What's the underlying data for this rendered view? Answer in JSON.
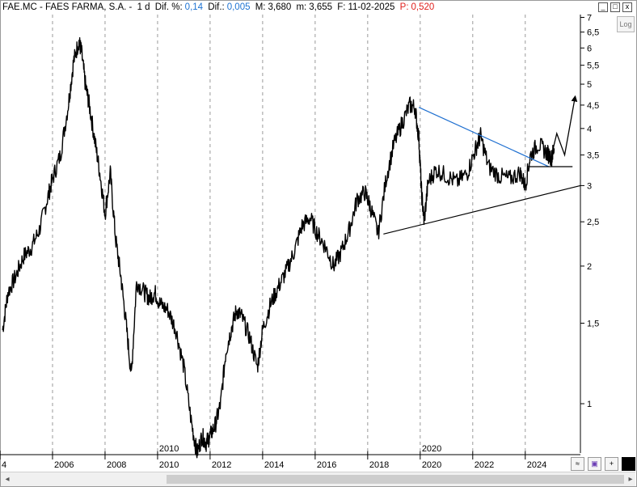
{
  "header": {
    "ticker": "FAE.MC - FAES FARMA, S.A. -",
    "period": "1 d",
    "dif_pct_label": "Dif. %:",
    "dif_pct_value": "0,14",
    "dif_label": "Dif.:",
    "dif_value": "0,005",
    "max_label": "M:",
    "max_value": "3,680",
    "min_label": "m:",
    "min_value": "3,655",
    "date_label": "F:",
    "date_value": "11-02-2025",
    "p_label": "P:",
    "p_value": "0,520"
  },
  "toolbar": {
    "log_label": "Log",
    "minimize_label": "_",
    "maximize_label": "□",
    "close_label": "x"
  },
  "colors": {
    "price": "#000000",
    "trend_upper": "#1e6fd0",
    "axis_text": "#000000",
    "header_value": "#1e73d2",
    "header_p": "#e0201c"
  },
  "chart_data": {
    "type": "line",
    "scale": "log",
    "ylim": [
      0.78,
      7.1
    ],
    "xlim": [
      2004.0,
      2026.1
    ],
    "y_ticks": [
      "7",
      "6,5",
      "6",
      "5,5",
      "5",
      "4,5",
      "4",
      "3,5",
      "3",
      "2,5",
      "2",
      "1,5",
      "1"
    ],
    "y_tick_values": [
      7,
      6.5,
      6,
      5.5,
      5,
      4.5,
      4,
      3.5,
      3,
      2.5,
      2,
      1.5,
      1
    ],
    "x_ticks": [
      "4",
      "2006",
      "2008",
      "2010",
      "2012",
      "2014",
      "2016",
      "2018",
      "2020",
      "2022",
      "2024"
    ],
    "x_tick_values": [
      2004.0,
      2006,
      2008,
      2010,
      2012,
      2014,
      2016,
      2018,
      2020,
      2022,
      2024
    ],
    "decade_markers": [
      {
        "label": "2010",
        "x": 2010
      },
      {
        "label": "2020",
        "x": 2020
      }
    ],
    "series": [
      {
        "x": [
          2004.1,
          2004.3,
          2004.6,
          2004.9,
          2005.2,
          2005.5,
          2005.8,
          2006.0,
          2006.3,
          2006.6,
          2006.8,
          2007.0,
          2007.1,
          2007.25,
          2007.4,
          2007.6,
          2007.8,
          2008.0,
          2008.2,
          2008.4,
          2008.6,
          2008.8,
          2009.0,
          2009.2,
          2009.5,
          2009.7,
          2009.9,
          2010.1,
          2010.4,
          2010.7,
          2011.0,
          2011.3,
          2011.5,
          2011.7,
          2011.85,
          2012.0,
          2012.2,
          2012.4,
          2012.6,
          2012.8,
          2013.0,
          2013.2,
          2013.5,
          2013.8,
          2014.0,
          2014.3,
          2014.6,
          2014.9,
          2015.2,
          2015.5,
          2015.8,
          2016.1,
          2016.4,
          2016.7,
          2017.0,
          2017.3,
          2017.6,
          2017.9,
          2018.1,
          2018.4,
          2018.7,
          2019.0,
          2019.3,
          2019.6,
          2019.8,
          2019.95,
          2020.05,
          2020.15,
          2020.3,
          2020.6,
          2021.0,
          2021.4,
          2021.8,
          2022.1,
          2022.3,
          2022.6,
          2023.0,
          2023.4,
          2023.8,
          2024.0,
          2024.2,
          2024.5,
          2024.8,
          2025.0,
          2025.1
        ],
        "y": [
          1.45,
          1.75,
          1.9,
          2.1,
          2.2,
          2.4,
          2.8,
          3.1,
          3.5,
          4.5,
          5.6,
          6.2,
          5.9,
          5.0,
          4.5,
          3.8,
          3.2,
          2.6,
          3.2,
          2.3,
          1.9,
          1.5,
          1.15,
          1.85,
          1.75,
          1.7,
          1.75,
          1.65,
          1.6,
          1.45,
          1.2,
          0.9,
          0.78,
          0.85,
          0.82,
          0.85,
          0.9,
          1.0,
          1.3,
          1.45,
          1.6,
          1.55,
          1.4,
          1.2,
          1.45,
          1.65,
          1.8,
          1.95,
          2.15,
          2.45,
          2.55,
          2.35,
          2.2,
          2.0,
          2.15,
          2.4,
          2.8,
          2.9,
          2.7,
          2.35,
          3.1,
          3.7,
          4.1,
          4.5,
          4.45,
          3.8,
          2.9,
          2.5,
          3.05,
          3.25,
          3.15,
          3.05,
          3.2,
          3.6,
          3.85,
          3.3,
          3.15,
          3.1,
          3.2,
          3.0,
          3.5,
          3.7,
          3.55,
          3.45,
          3.62
        ]
      }
    ],
    "annotations": {
      "upper_trendline": {
        "x": [
          2019.95,
          2024.9
        ],
        "y": [
          4.45,
          3.3
        ]
      },
      "lower_trendline": {
        "x": [
          2018.6,
          2026.1
        ],
        "y": [
          2.35,
          3.0
        ]
      },
      "support_line": {
        "x": [
          2024.1,
          2025.8
        ],
        "y": [
          3.3,
          3.3
        ]
      },
      "projection_path": {
        "x": [
          2024.95,
          2025.2,
          2025.5,
          2025.9
        ],
        "y": [
          3.4,
          3.9,
          3.5,
          4.7
        ]
      }
    }
  }
}
